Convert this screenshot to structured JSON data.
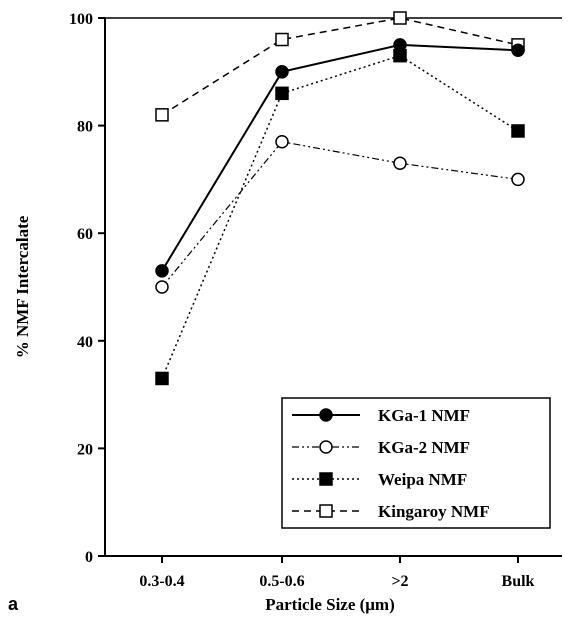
{
  "panel_label": "a",
  "chart_data": {
    "type": "line",
    "categories": [
      "0.3-0.4",
      "0.5-0.6",
      ">2",
      "Bulk"
    ],
    "xlabel": "Particle Size (μm)",
    "ylabel": "% NMF Intercalate",
    "ylim": [
      0,
      100
    ],
    "yticks": [
      0,
      20,
      40,
      60,
      80,
      100
    ],
    "grid": false,
    "legend_position": "bottom-right",
    "series": [
      {
        "name": "KGa-1 NMF",
        "values": [
          53,
          90,
          95,
          94
        ],
        "marker": "filled-circle",
        "line": "solid"
      },
      {
        "name": "KGa-2 NMF",
        "values": [
          50,
          77,
          73,
          70
        ],
        "marker": "open-circle",
        "line": "dash-dot-dot"
      },
      {
        "name": "Weipa NMF",
        "values": [
          33,
          86,
          93,
          79
        ],
        "marker": "filled-square",
        "line": "dotted"
      },
      {
        "name": "Kingaroy NMF",
        "values": [
          82,
          96,
          100,
          95
        ],
        "marker": "open-square",
        "line": "dashed"
      }
    ]
  }
}
